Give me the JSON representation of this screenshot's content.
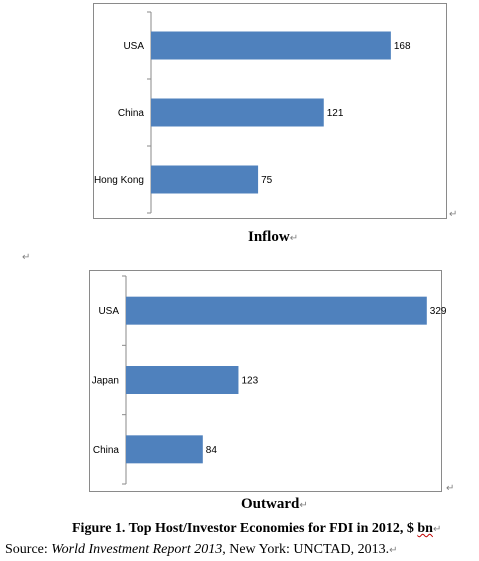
{
  "chart_data": [
    {
      "type": "bar",
      "orientation": "horizontal",
      "categories": [
        "USA",
        "China",
        "Hong Kong"
      ],
      "values": [
        168,
        121,
        75
      ],
      "xlim": [
        0,
        180
      ],
      "color": "#4f81bd",
      "caption": "Inflow",
      "data_labels": [
        "168",
        "121",
        "75"
      ]
    },
    {
      "type": "bar",
      "orientation": "horizontal",
      "categories": [
        "USA",
        "Japan",
        "China"
      ],
      "values": [
        329,
        123,
        84
      ],
      "xlim": [
        0,
        350
      ],
      "color": "#4f81bd",
      "caption": "Outward",
      "data_labels": [
        "329",
        "123",
        "84"
      ]
    }
  ],
  "figure_title_main": "Figure 1. Top Host/Investor Economies for FDI in 2012, $ ",
  "figure_title_unit": "bn",
  "source_prefix": "Source: ",
  "source_italic": "World Investment Report 2013",
  "source_suffix": ", New York: UNCTAD, 2013.",
  "mark_symbol": "↵"
}
